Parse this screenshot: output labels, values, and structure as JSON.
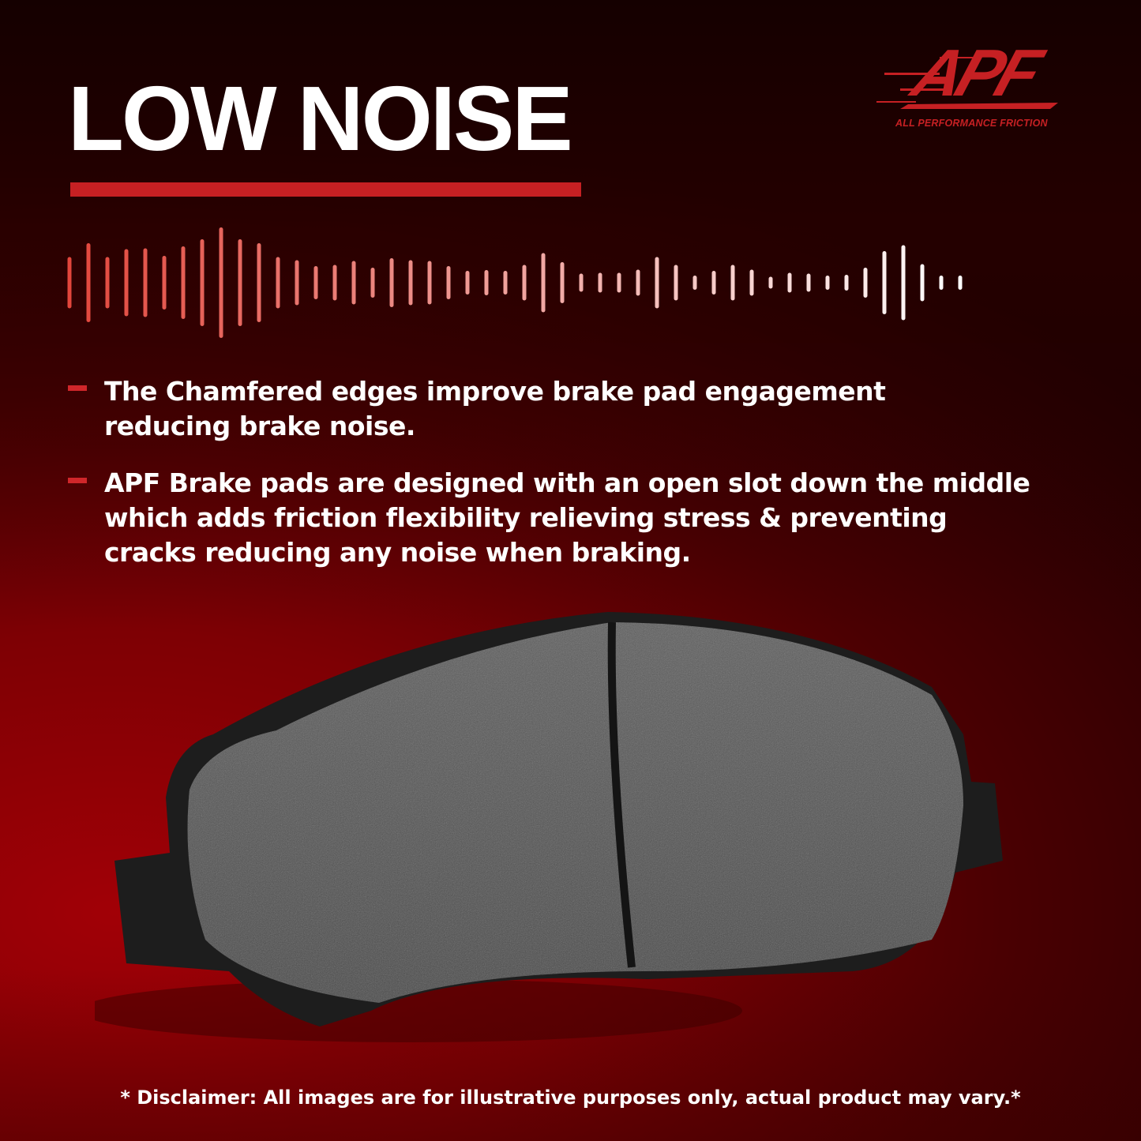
{
  "headline": "LOW NOISE",
  "brand": {
    "logo_text": "APF",
    "tagline": "ALL PERFORMANCE FRICTION",
    "color": "#c62023"
  },
  "bullets": [
    {
      "text": "The Chamfered edges improve brake pad engagement\nreducing brake noise."
    },
    {
      "text": "APF Brake pads are designed with an open slot down the middle\nwhich adds friction flexibility relieving stress & preventing\n cracks reducing any noise when braking."
    }
  ],
  "image": {
    "subject": "brake-pad"
  },
  "disclaimer": "* Disclaimer: All images are for illustrative purposes only, actual product may vary.*"
}
